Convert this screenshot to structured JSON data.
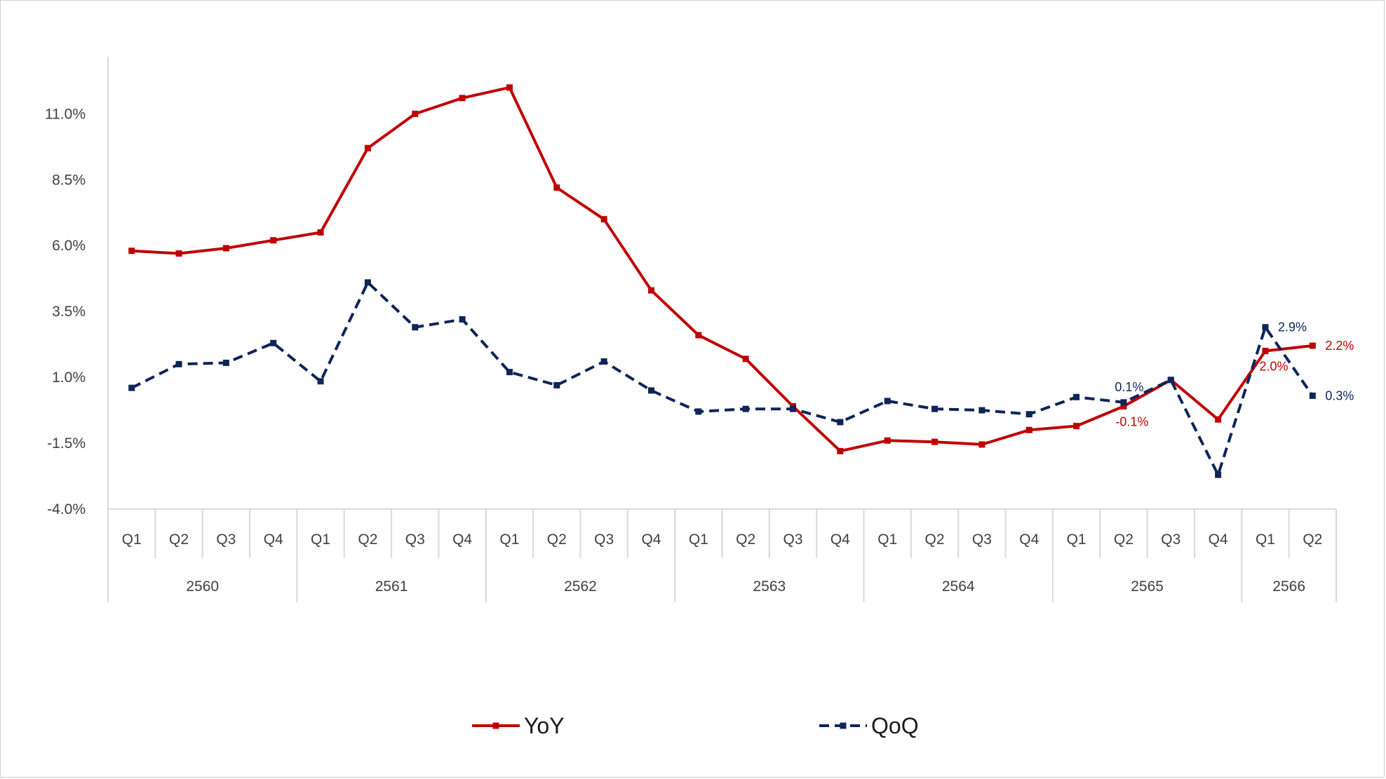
{
  "chart_data": {
    "type": "line",
    "title": "",
    "xlabel": "",
    "ylabel": "",
    "ylim": [
      -4.0,
      12.5
    ],
    "yticks": [
      -4.0,
      -1.5,
      1.0,
      3.5,
      6.0,
      8.5,
      11.0
    ],
    "ytick_labels": [
      "-4.0%",
      "-1.5%",
      "1.0%",
      "3.5%",
      "6.0%",
      "8.5%",
      "11.0%"
    ],
    "grid": false,
    "legend_position": "bottom-center",
    "categories": [
      "Q1",
      "Q2",
      "Q3",
      "Q4",
      "Q1",
      "Q2",
      "Q3",
      "Q4",
      "Q1",
      "Q2",
      "Q3",
      "Q4",
      "Q1",
      "Q2",
      "Q3",
      "Q4",
      "Q1",
      "Q2",
      "Q3",
      "Q4",
      "Q1",
      "Q2",
      "Q3",
      "Q4",
      "Q1",
      "Q2"
    ],
    "year_groups": [
      {
        "label": "2560",
        "count": 4
      },
      {
        "label": "2561",
        "count": 4
      },
      {
        "label": "2562",
        "count": 4
      },
      {
        "label": "2563",
        "count": 4
      },
      {
        "label": "2564",
        "count": 4
      },
      {
        "label": "2565",
        "count": 4
      },
      {
        "label": "2566",
        "count": 2
      }
    ],
    "series": [
      {
        "name": "YoY",
        "color": "#c00000",
        "style": "solid",
        "values": [
          5.8,
          5.7,
          5.9,
          6.2,
          6.5,
          9.7,
          11.0,
          11.6,
          12.0,
          8.2,
          7.0,
          4.3,
          2.6,
          1.7,
          -0.1,
          -1.8,
          -1.4,
          -1.45,
          -1.55,
          -1.0,
          -0.85,
          -0.1,
          0.9,
          -0.6,
          2.0,
          2.2
        ],
        "labels": [
          {
            "index": 21,
            "text": "-0.1%",
            "position": "below"
          },
          {
            "index": 24,
            "text": "2.0%",
            "position": "below"
          },
          {
            "index": 25,
            "text": "2.2%",
            "position": "right"
          }
        ]
      },
      {
        "name": "QoQ",
        "color": "#0d2557",
        "style": "dashed",
        "values": [
          0.6,
          1.5,
          1.55,
          2.3,
          0.85,
          4.6,
          2.9,
          3.2,
          1.2,
          0.7,
          1.6,
          0.5,
          -0.3,
          -0.2,
          -0.2,
          -0.7,
          0.1,
          -0.2,
          -0.25,
          -0.4,
          0.25,
          0.05,
          0.9,
          -2.7,
          2.9,
          0.3
        ],
        "labels": [
          {
            "index": 21,
            "text": "0.1%",
            "position": "above"
          },
          {
            "index": 24,
            "text": "2.9%",
            "position": "right"
          },
          {
            "index": 25,
            "text": "0.3%",
            "position": "right"
          }
        ]
      }
    ]
  }
}
